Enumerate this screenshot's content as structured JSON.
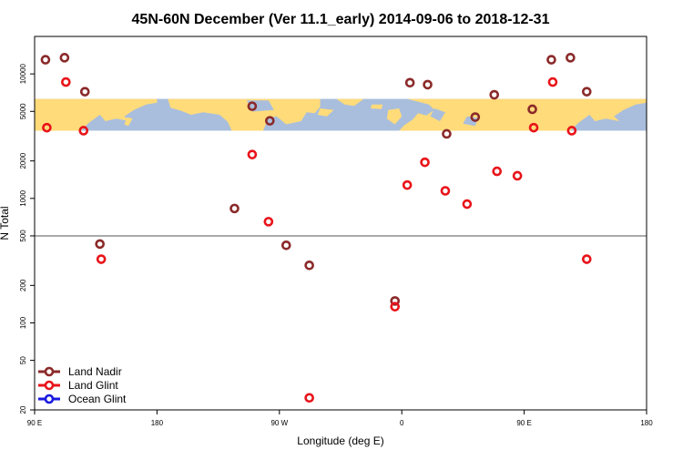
{
  "chart_data": {
    "type": "scatter",
    "title": "45N-60N December (Ver 11.1_early)   2014-09-06 to 2018-12-31",
    "xlabel": "Longitude (deg E)",
    "ylabel": "N Total",
    "xlim": [
      90,
      540
    ],
    "ylim": [
      20,
      20000
    ],
    "yscale": "log",
    "x_ticks": [
      {
        "value": 90,
        "label": "90 E"
      },
      {
        "value": 180,
        "label": "180"
      },
      {
        "value": 270,
        "label": "90 W"
      },
      {
        "value": 360,
        "label": "0"
      },
      {
        "value": 450,
        "label": "90 E"
      },
      {
        "value": 540,
        "label": "180"
      }
    ],
    "y_ticks": [
      {
        "value": 20,
        "label": "20"
      },
      {
        "value": 50,
        "label": "50"
      },
      {
        "value": 100,
        "label": "100"
      },
      {
        "value": 200,
        "label": "200"
      },
      {
        "value": 500,
        "label": "500"
      },
      {
        "value": 1000,
        "label": "1000"
      },
      {
        "value": 2000,
        "label": "2000"
      },
      {
        "value": 5000,
        "label": "5000"
      },
      {
        "value": 10000,
        "label": "10000"
      }
    ],
    "reference_line_y": 500,
    "map_band": {
      "y_from": 3500,
      "y_to": 6300,
      "land_color": "#ffdb7a",
      "ocean_color": "#a9bedd"
    },
    "series": [
      {
        "name": "Land Nadir",
        "color": "#8b2a2a",
        "x": [
          98,
          112,
          127,
          138,
          237,
          250,
          263,
          275,
          292,
          355,
          366,
          379,
          393,
          414,
          428,
          456,
          470,
          484,
          496
        ],
        "y": [
          13000,
          13500,
          7200,
          430,
          830,
          5500,
          4200,
          420,
          290,
          150,
          8500,
          8200,
          3300,
          4500,
          6800,
          5200,
          13000,
          13500,
          7200
        ]
      },
      {
        "name": "Land Glint",
        "color": "#e8141a",
        "x": [
          99,
          113,
          126,
          139,
          250,
          262,
          292,
          355,
          364,
          377,
          392,
          408,
          430,
          445,
          457,
          471,
          485,
          496
        ],
        "y": [
          3700,
          8600,
          3500,
          325,
          2250,
          650,
          25,
          135,
          1280,
          1950,
          1150,
          900,
          1650,
          1520,
          3700,
          8600,
          3500,
          325
        ]
      },
      {
        "name": "Ocean Glint",
        "color": "#1a1ae0",
        "x": [],
        "y": []
      }
    ],
    "legend_position": "bottom-left",
    "grid": false
  }
}
